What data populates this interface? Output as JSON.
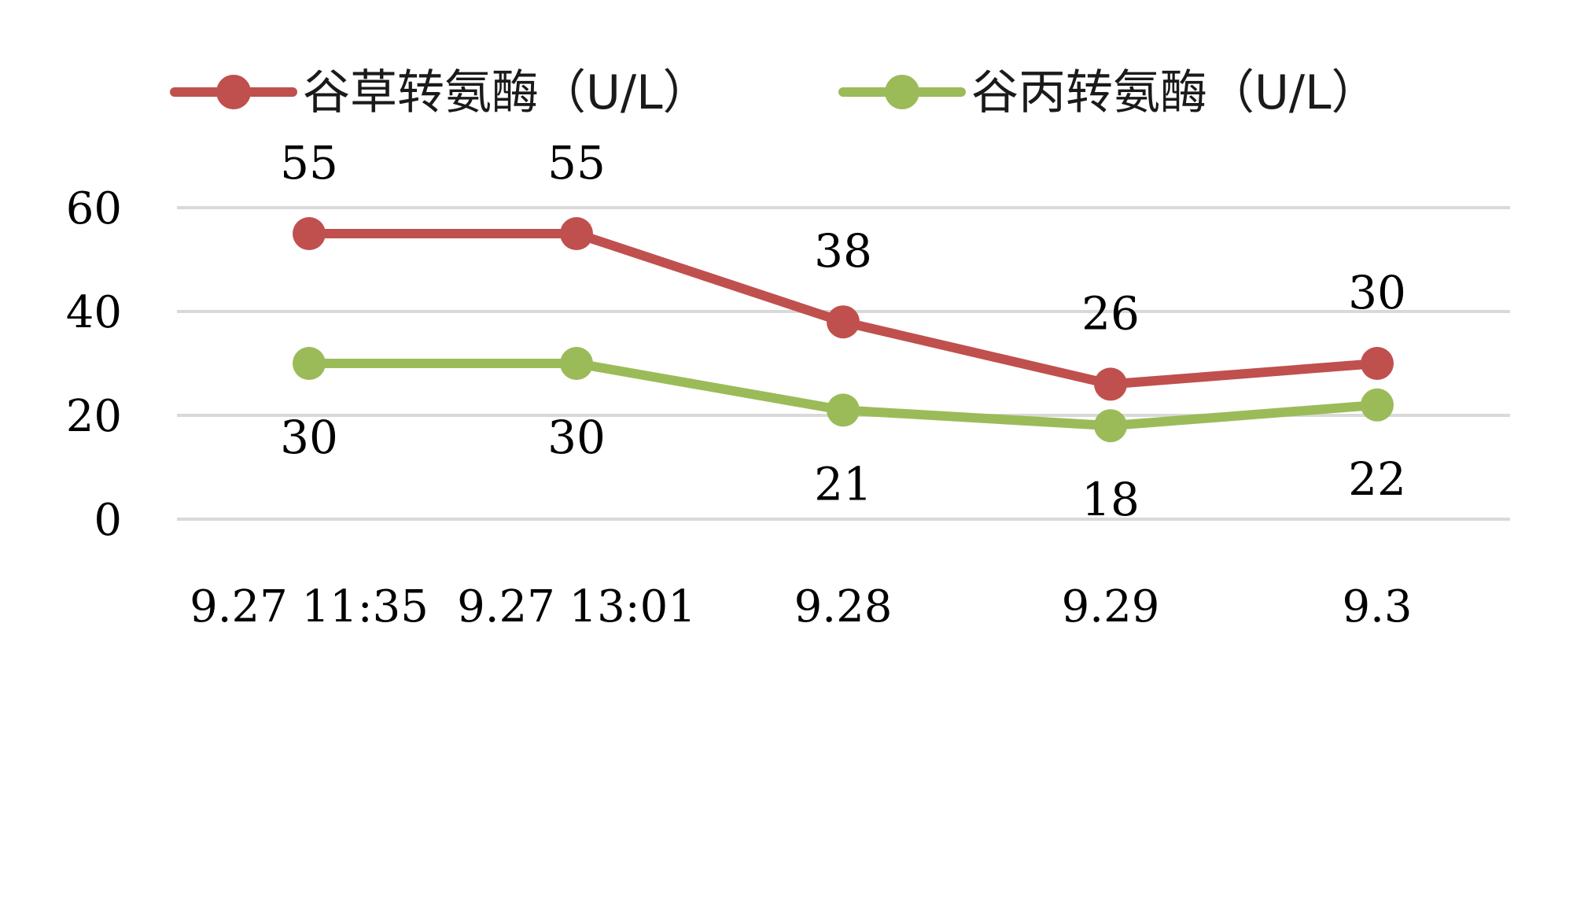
{
  "chart_data": {
    "type": "line",
    "categories": [
      "9.27 11:35",
      "9.27 13:01",
      "9.28",
      "9.29",
      "9.3"
    ],
    "series": [
      {
        "name": "谷草转氨酶（U/L）",
        "values": [
          55,
          55,
          38,
          26,
          30
        ],
        "color": "#c0504d",
        "label_position": "above"
      },
      {
        "name": "谷丙转氨酶（U/L）",
        "values": [
          30,
          30,
          21,
          18,
          22
        ],
        "color": "#9bbb59",
        "label_position": "below"
      }
    ],
    "y_ticks": [
      "0",
      "20",
      "40",
      "60"
    ],
    "ylim": [
      0,
      60
    ],
    "grid": true,
    "legend": "top"
  }
}
